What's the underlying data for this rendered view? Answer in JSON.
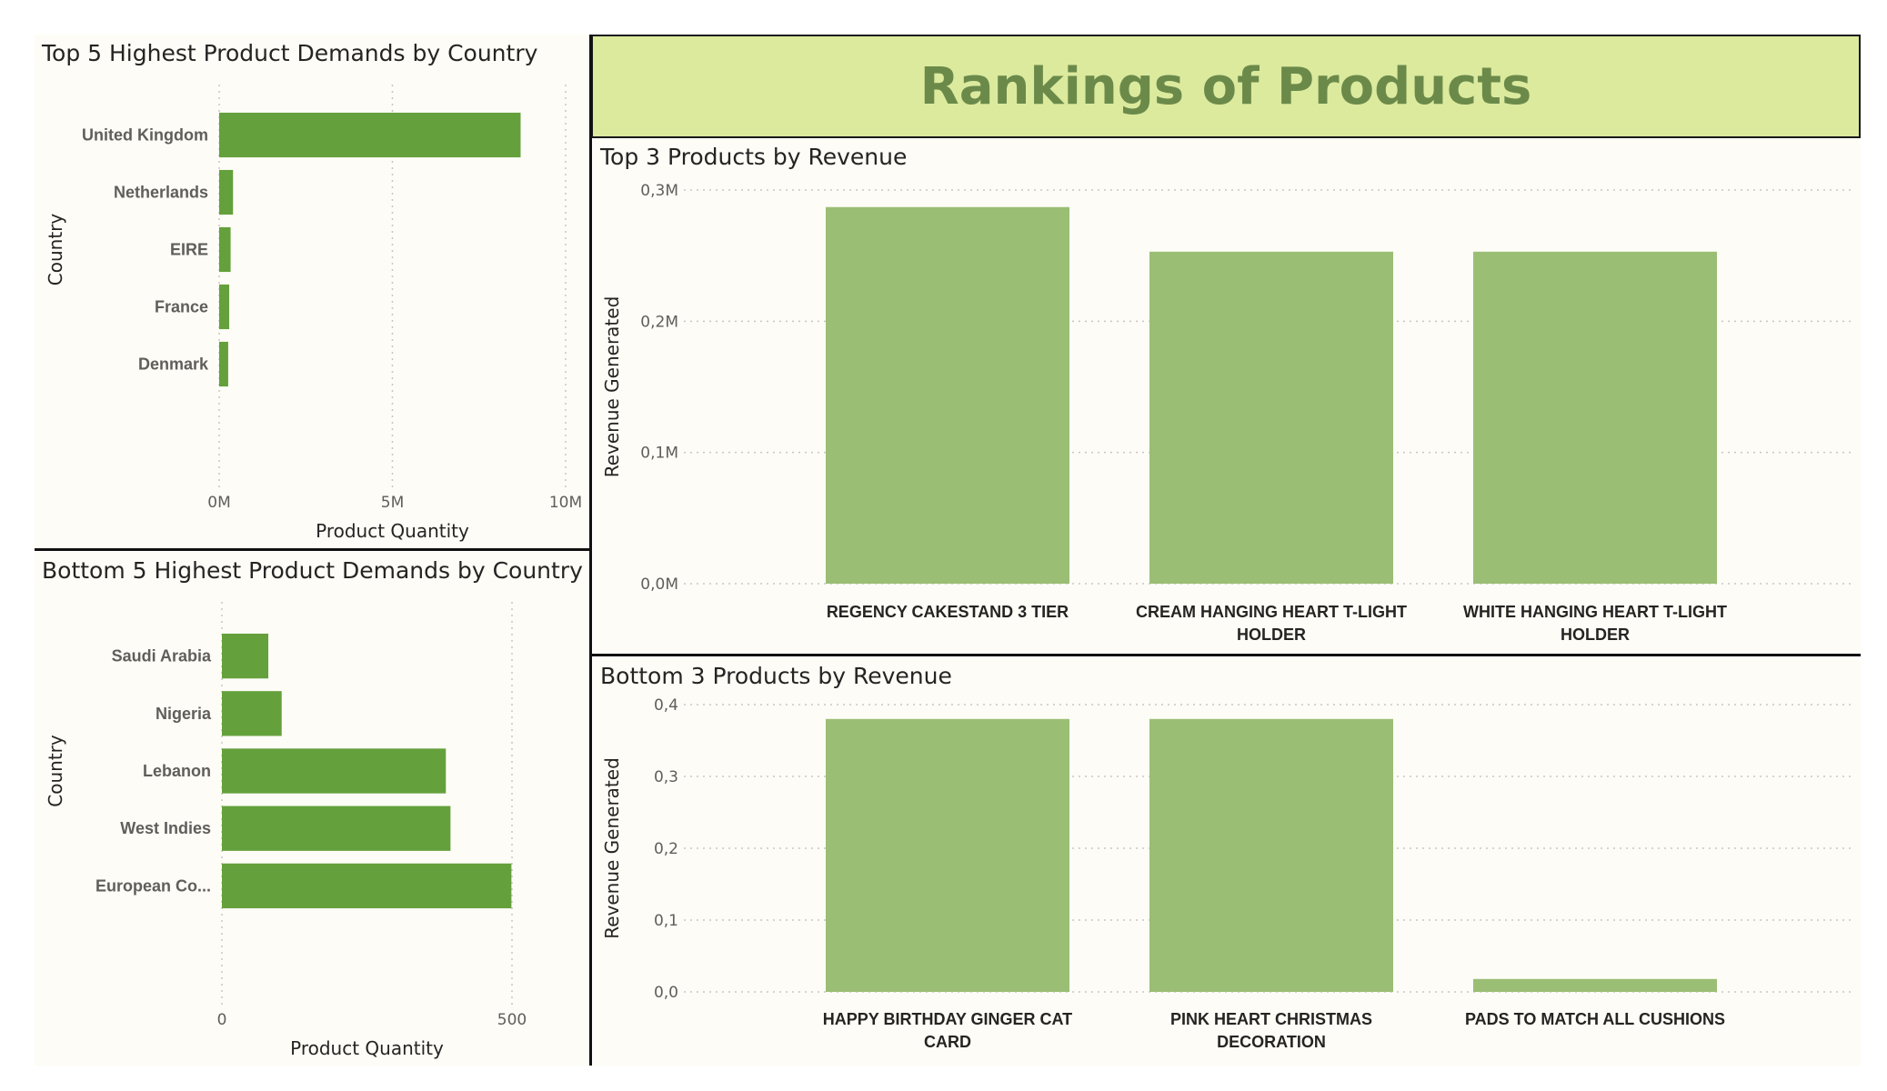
{
  "header": {
    "title": "Rankings of Products"
  },
  "colors": {
    "bar_dark": "#64a03b",
    "bar_light": "#9bbe75",
    "header_bg": "#dcea9e",
    "title_text": "#6b8a4a"
  },
  "chart_data": [
    {
      "id": "top5",
      "type": "bar",
      "orientation": "horizontal",
      "title": "Top 5 Highest Product Demands by Country",
      "xlabel": "Product Quantity",
      "ylabel": "Country",
      "categories": [
        "United Kingdom",
        "Netherlands",
        "EIRE",
        "France",
        "Denmark"
      ],
      "values": [
        8.7,
        0.4,
        0.33,
        0.29,
        0.26
      ],
      "value_unit": "M",
      "xlim": [
        0,
        10
      ],
      "ticks": [
        0,
        5,
        10
      ],
      "tick_labels": [
        "0M",
        "5M",
        "10M"
      ],
      "grid": true,
      "color": "#64a03b"
    },
    {
      "id": "bottom5",
      "type": "bar",
      "orientation": "horizontal",
      "title": "Bottom 5 Highest Product Demands by Country",
      "xlabel": "Product Quantity",
      "ylabel": "Country",
      "categories": [
        "Saudi Arabia",
        "Nigeria",
        "Lebanon",
        "West Indies",
        "European Co..."
      ],
      "values": [
        80,
        103,
        386,
        394,
        499
      ],
      "xlim": [
        0,
        500
      ],
      "ticks": [
        0,
        500
      ],
      "tick_labels": [
        "0",
        "500"
      ],
      "grid": true,
      "color": "#64a03b"
    },
    {
      "id": "top3",
      "type": "bar",
      "orientation": "vertical",
      "title": "Top 3 Products by Revenue",
      "ylabel": "Revenue Generated",
      "categories": [
        [
          "REGENCY CAKESTAND 3 TIER"
        ],
        [
          "CREAM HANGING HEART T-LIGHT",
          "HOLDER"
        ],
        [
          "WHITE HANGING HEART T-LIGHT",
          "HOLDER"
        ]
      ],
      "values": [
        0.287,
        0.253,
        0.253
      ],
      "value_unit": "M",
      "ylim": [
        0,
        0.3
      ],
      "ticks": [
        0,
        0.1,
        0.2,
        0.3
      ],
      "tick_labels": [
        "0,0M",
        "0,1M",
        "0,2M",
        "0,3M"
      ],
      "grid": true,
      "color": "#9bbe75"
    },
    {
      "id": "bottom3",
      "type": "bar",
      "orientation": "vertical",
      "title": "Bottom 3 Products by Revenue",
      "ylabel": "Revenue Generated",
      "categories": [
        [
          "HAPPY BIRTHDAY GINGER CAT",
          "CARD"
        ],
        [
          "PINK HEART CHRISTMAS",
          "DECORATION"
        ],
        [
          "PADS TO MATCH ALL CUSHIONS"
        ]
      ],
      "values": [
        0.38,
        0.38,
        0.018
      ],
      "ylim": [
        0,
        0.4
      ],
      "ticks": [
        0,
        0.1,
        0.2,
        0.3,
        0.4
      ],
      "tick_labels": [
        "0,0",
        "0,1",
        "0,2",
        "0,3",
        "0,4"
      ],
      "grid": true,
      "color": "#9bbe75"
    }
  ]
}
